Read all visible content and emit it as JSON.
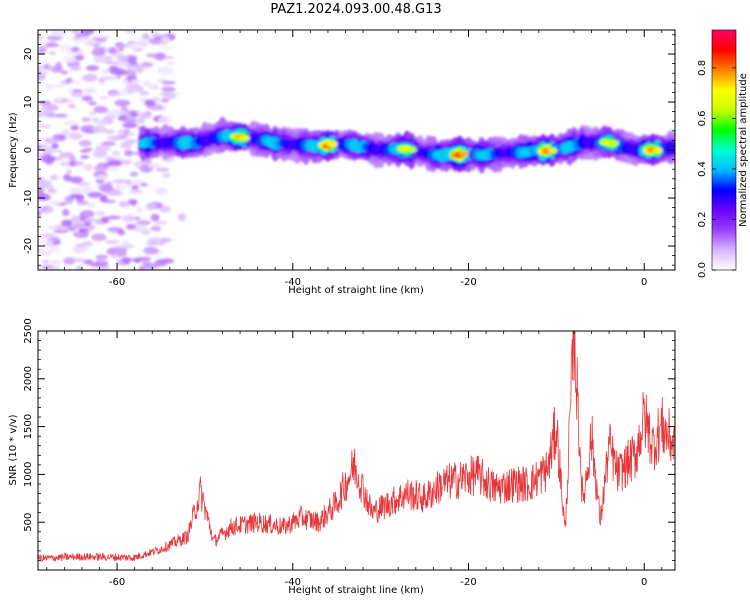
{
  "figure": {
    "title": "PAZ1.2024.093.00.48.G13"
  },
  "chart_data": [
    {
      "type": "heatmap",
      "title": "",
      "xlabel": "Height of straight line (km)",
      "ylabel": "Frequency (Hz)",
      "xlim": [
        -69,
        3.5
      ],
      "ylim": [
        -25,
        25
      ],
      "xticks": [
        -60,
        -40,
        -20,
        0
      ],
      "yticks": [
        -20,
        -10,
        0,
        10,
        20
      ],
      "colorbar": {
        "label": "Normalized spectral amplitude",
        "range": [
          0,
          0.95
        ],
        "ticks": [
          0.0,
          0.2,
          0.4,
          0.6,
          0.8
        ],
        "colormap": "rainbow",
        "stops": [
          "#ffffff",
          "#d7b6ff",
          "#9b40ff",
          "#6a00ff",
          "#0000ff",
          "#00bfff",
          "#00ffd0",
          "#00ff00",
          "#c8ff00",
          "#ffff00",
          "#ff8000",
          "#ff0000",
          "#ff0066"
        ]
      },
      "noise_region": {
        "x_range": [
          -69,
          -54
        ],
        "freq_range": [
          -25,
          25
        ],
        "amplitude": "low (0.05-0.15)"
      },
      "signal_ridge": {
        "x_start": -57,
        "x_end": 3.5,
        "centre_freq_points": [
          {
            "x": -57,
            "freq": 1.5
          },
          {
            "x": -54,
            "freq": 1.5
          },
          {
            "x": -51,
            "freq": 1.5
          },
          {
            "x": -48,
            "freq": 3
          },
          {
            "x": -45,
            "freq": 2.5
          },
          {
            "x": -42,
            "freq": 1.5
          },
          {
            "x": -38,
            "freq": 0.8
          },
          {
            "x": -34,
            "freq": 1.2
          },
          {
            "x": -30,
            "freq": 0
          },
          {
            "x": -27,
            "freq": 0.2
          },
          {
            "x": -24,
            "freq": -1
          },
          {
            "x": -20,
            "freq": -1
          },
          {
            "x": -17,
            "freq": -0.8
          },
          {
            "x": -13,
            "freq": -0.3
          },
          {
            "x": -10,
            "freq": 0
          },
          {
            "x": -7,
            "freq": 1.5
          },
          {
            "x": -4,
            "freq": 1.5
          },
          {
            "x": -1,
            "freq": 0
          },
          {
            "x": 1,
            "freq": 0
          },
          {
            "x": 3.5,
            "freq": 0.5
          }
        ],
        "peak_amplitude_points": [
          {
            "x": -46,
            "amp": 0.8
          },
          {
            "x": -36,
            "amp": 0.85
          },
          {
            "x": -27,
            "amp": 0.75
          },
          {
            "x": -21,
            "amp": 0.9
          },
          {
            "x": -11,
            "amp": 0.85
          },
          {
            "x": -4,
            "amp": 0.75
          },
          {
            "x": 1,
            "amp": 0.85
          }
        ]
      }
    },
    {
      "type": "line",
      "title": "",
      "xlabel": "Height of straight line (km)",
      "ylabel": "SNR (10 * v/v)",
      "xlim": [
        -69,
        3.5
      ],
      "ylim": [
        0,
        2500
      ],
      "xticks": [
        -60,
        -40,
        -20,
        0
      ],
      "yticks": [
        500,
        1000,
        1500,
        2000,
        2500
      ],
      "color": "#e8373a",
      "series_envelope": [
        {
          "x": -69,
          "y": 120
        },
        {
          "x": -64,
          "y": 140
        },
        {
          "x": -58,
          "y": 130
        },
        {
          "x": -55,
          "y": 220
        },
        {
          "x": -52,
          "y": 350
        },
        {
          "x": -50.5,
          "y": 820
        },
        {
          "x": -49,
          "y": 300
        },
        {
          "x": -47,
          "y": 450
        },
        {
          "x": -44,
          "y": 500
        },
        {
          "x": -41,
          "y": 450
        },
        {
          "x": -39,
          "y": 550
        },
        {
          "x": -37,
          "y": 500
        },
        {
          "x": -35,
          "y": 700
        },
        {
          "x": -33,
          "y": 1100
        },
        {
          "x": -31,
          "y": 600
        },
        {
          "x": -29,
          "y": 700
        },
        {
          "x": -27,
          "y": 800
        },
        {
          "x": -25,
          "y": 750
        },
        {
          "x": -23,
          "y": 900
        },
        {
          "x": -21,
          "y": 950
        },
        {
          "x": -19,
          "y": 1000
        },
        {
          "x": -17,
          "y": 850
        },
        {
          "x": -15,
          "y": 900
        },
        {
          "x": -13,
          "y": 900
        },
        {
          "x": -11,
          "y": 1050
        },
        {
          "x": -10,
          "y": 1500
        },
        {
          "x": -9,
          "y": 400
        },
        {
          "x": -8,
          "y": 2500
        },
        {
          "x": -7,
          "y": 700
        },
        {
          "x": -6,
          "y": 1400
        },
        {
          "x": -5,
          "y": 500
        },
        {
          "x": -4,
          "y": 1300
        },
        {
          "x": -3,
          "y": 1000
        },
        {
          "x": -1,
          "y": 1200
        },
        {
          "x": 0,
          "y": 1600
        },
        {
          "x": 1,
          "y": 1300
        },
        {
          "x": 2,
          "y": 1500
        },
        {
          "x": 3.5,
          "y": 1300
        }
      ]
    }
  ]
}
